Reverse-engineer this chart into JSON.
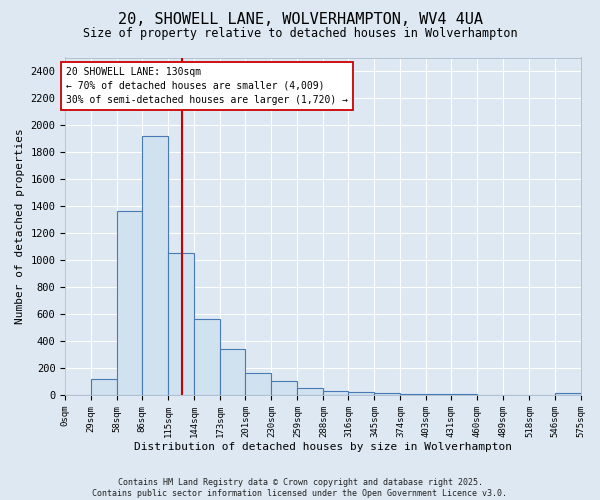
{
  "title_line1": "20, SHOWELL LANE, WOLVERHAMPTON, WV4 4UA",
  "title_line2": "Size of property relative to detached houses in Wolverhampton",
  "xlabel": "Distribution of detached houses by size in Wolverhampton",
  "ylabel": "Number of detached properties",
  "bin_edges": [
    0,
    29,
    58,
    86,
    115,
    144,
    173,
    201,
    230,
    259,
    288,
    316,
    345,
    374,
    403,
    431,
    460,
    489,
    518,
    546,
    575
  ],
  "bar_heights": [
    0,
    120,
    1360,
    1920,
    1050,
    560,
    340,
    160,
    105,
    55,
    30,
    20,
    15,
    10,
    5,
    5,
    0,
    0,
    0,
    15
  ],
  "bar_color": "#d0e2f0",
  "bar_edge_color": "#4a7ab5",
  "vline_x": 130,
  "vline_color": "#cc0000",
  "annotation_title": "20 SHOWELL LANE: 130sqm",
  "annotation_line2": "← 70% of detached houses are smaller (4,009)",
  "annotation_line3": "30% of semi-detached houses are larger (1,720) →",
  "annotation_box_color": "#ffffff",
  "annotation_border_color": "#cc0000",
  "ylim": [
    0,
    2500
  ],
  "yticks": [
    0,
    200,
    400,
    600,
    800,
    1000,
    1200,
    1400,
    1600,
    1800,
    2000,
    2200,
    2400
  ],
  "xlim": [
    0,
    575
  ],
  "background_color": "#dde8f2",
  "grid_color": "#ffffff",
  "footer_line1": "Contains HM Land Registry data © Crown copyright and database right 2025.",
  "footer_line2": "Contains public sector information licensed under the Open Government Licence v3.0."
}
